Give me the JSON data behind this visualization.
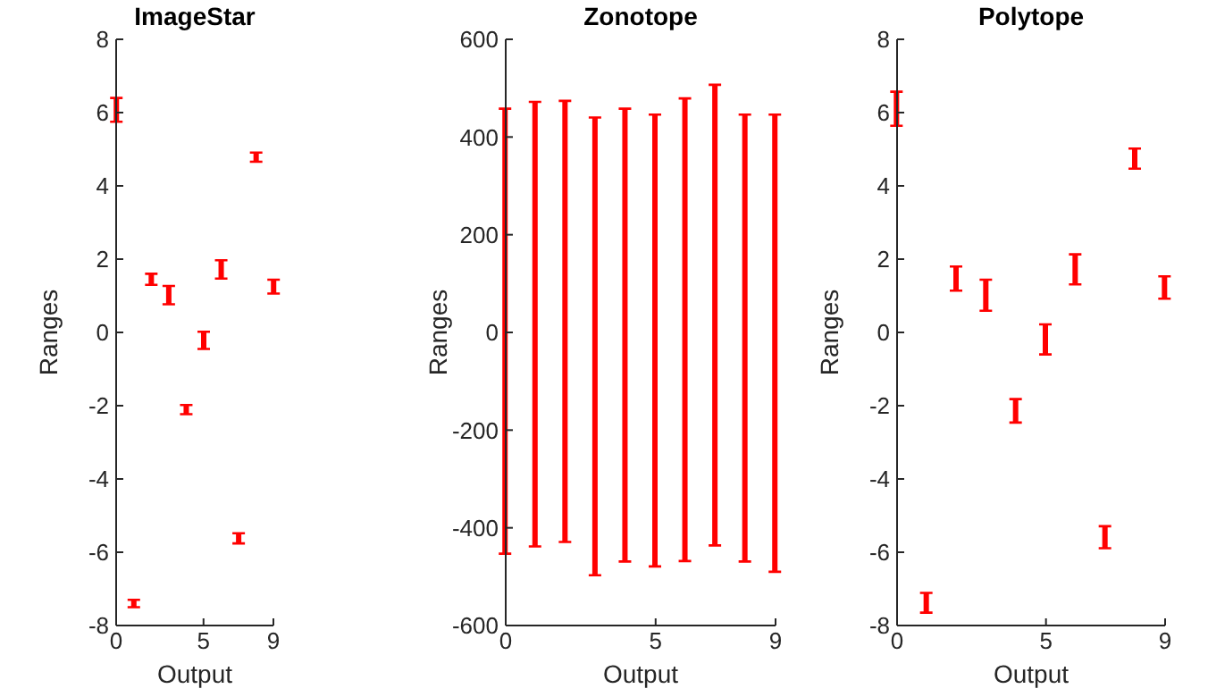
{
  "chart_data": [
    {
      "type": "bar",
      "title": "ImageStar",
      "xlabel": "Output",
      "ylabel": "Ranges",
      "x": [
        0,
        1,
        2,
        3,
        4,
        5,
        6,
        7,
        8,
        9
      ],
      "base": [
        5.75,
        -7.5,
        1.3,
        0.77,
        -2.23,
        -0.45,
        1.47,
        -5.76,
        4.66,
        1.06
      ],
      "values": [
        0.65,
        0.2,
        0.3,
        0.5,
        0.25,
        0.47,
        0.5,
        0.28,
        0.25,
        0.38
      ],
      "color": "#ff0000",
      "xlim": [
        0,
        9
      ],
      "xticks": [
        0,
        5,
        9
      ],
      "ylim": [
        -8,
        8
      ],
      "yticks": [
        -8,
        -6,
        -4,
        -2,
        0,
        2,
        4,
        6,
        8
      ]
    },
    {
      "type": "bar",
      "title": "Zonotope",
      "xlabel": "Output",
      "ylabel": "Ranges",
      "x": [
        0,
        1,
        2,
        3,
        4,
        5,
        6,
        7,
        8,
        9
      ],
      "base": [
        -453,
        -438,
        -429,
        -497,
        -469,
        -479,
        -468,
        -436,
        -469,
        -490
      ],
      "values": [
        911,
        910,
        903,
        937,
        927,
        925,
        947,
        943,
        915,
        936
      ],
      "color": "#ff0000",
      "xlim": [
        0,
        9
      ],
      "xticks": [
        0,
        5,
        9
      ],
      "ylim": [
        -600,
        600
      ],
      "yticks": [
        -600,
        -400,
        -200,
        0,
        200,
        400,
        600
      ]
    },
    {
      "type": "bar",
      "title": "Polytope",
      "xlabel": "Output",
      "ylabel": "Ranges",
      "x": [
        0,
        1,
        2,
        3,
        4,
        5,
        6,
        7,
        8,
        9
      ],
      "base": [
        5.64,
        -7.65,
        1.14,
        0.59,
        -2.46,
        -0.6,
        1.31,
        -5.89,
        4.47,
        0.92
      ],
      "values": [
        0.93,
        0.54,
        0.66,
        0.85,
        0.64,
        0.82,
        0.82,
        0.6,
        0.55,
        0.61
      ],
      "color": "#ff0000",
      "xlim": [
        0,
        9
      ],
      "xticks": [
        0,
        5,
        9
      ],
      "ylim": [
        -8,
        8
      ],
      "yticks": [
        -8,
        -6,
        -4,
        -2,
        0,
        2,
        4,
        6,
        8
      ]
    }
  ]
}
